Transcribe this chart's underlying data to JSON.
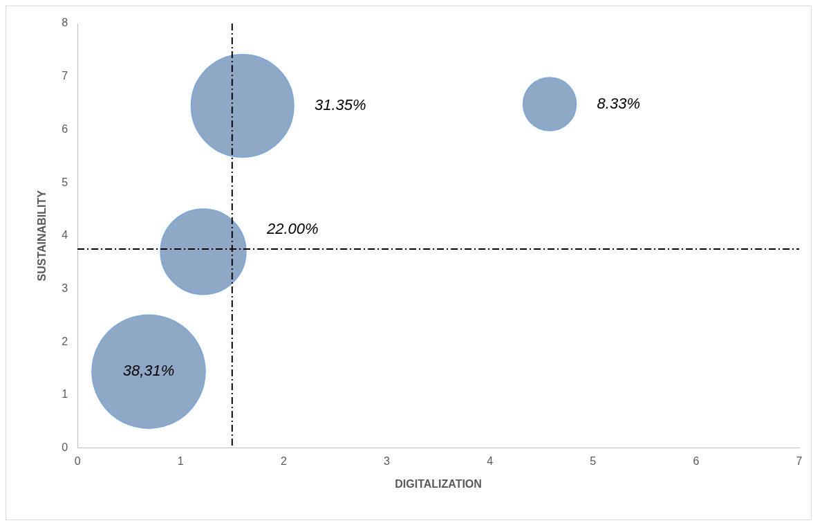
{
  "chart_data": {
    "type": "bubble",
    "xlabel": "DIGITALIZATION",
    "ylabel": "SUSTAINABILITY",
    "series": [
      {
        "color": "#8fa8c6",
        "x": [
          0.69,
          1.22,
          1.6,
          4.58
        ],
        "values": [
          1.44,
          3.7,
          6.45,
          6.48
        ],
        "sizes": [
          1,
          0.57,
          0.82,
          0.22
        ]
      }
    ],
    "annotations": [
      "38,31%",
      "22.00%",
      "31.35%",
      "8.33%"
    ],
    "xlim": [
      0,
      7
    ],
    "xticks": [
      0,
      1,
      2,
      3,
      4,
      5,
      6,
      7
    ],
    "ylim": [
      0,
      8
    ],
    "yticks": [
      0,
      1,
      2,
      3,
      4,
      5,
      6,
      7,
      8
    ],
    "ref_lines": [
      {
        "axis": "x",
        "value": 1.5,
        "color": "#000000",
        "line_style": "dashed"
      },
      {
        "axis": "y",
        "value": 3.75,
        "color": "#000000",
        "line_style": "dashed"
      }
    ],
    "grid": false,
    "legend": false
  }
}
